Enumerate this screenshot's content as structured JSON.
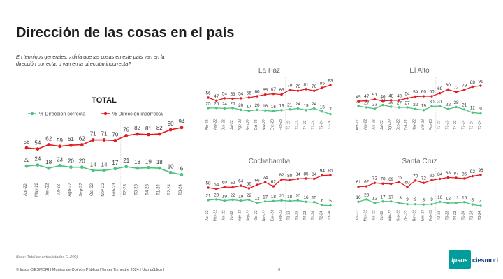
{
  "title": "Dirección de las cosas en el país",
  "question": "En términos generales, ¿diría que las cosas en este país van en la dirección correcta, o van en la dirección incorrecta?",
  "base": "Base: Total de entrevistados (1.200).",
  "footer": "© Ipsos CIESMORI | Monitor de Opinión Pública | Tercer Trimestre 2024 | Uso público |",
  "page_number": "9",
  "logo": {
    "ipsos": "Ipsos",
    "ciesmori": "ciesmori",
    "box_color": "#009d9a",
    "ciesmori_color": "#0b3b73"
  },
  "colors": {
    "correcta": "#4cc37c",
    "incorrecta": "#e5191e",
    "divider": "#d9d9d9"
  },
  "chart_data": [
    {
      "type": "line",
      "title": "TOTAL",
      "legend": [
        "% Dirección correcta",
        "% Dirección incorrecta"
      ],
      "categories": [
        "Abr-22",
        "May-22",
        "Jun-22",
        "Jul-22",
        "Ago-22",
        "Sep-22",
        "Oct-22",
        "Nov-22",
        "Feb-23",
        "T2-23",
        "T3-23",
        "T4-23",
        "T1-24",
        "T2-24",
        "T3-24"
      ],
      "series": [
        {
          "name": "% Dirección correcta",
          "values": [
            22,
            24,
            18,
            23,
            20,
            20,
            14,
            14,
            17,
            21,
            18,
            19,
            18,
            10,
            6
          ]
        },
        {
          "name": "% Dirección incorrecta",
          "values": [
            56,
            54,
            62,
            59,
            61,
            62,
            71,
            71,
            70,
            79,
            82,
            81,
            82,
            90,
            94
          ]
        }
      ]
    },
    {
      "type": "line",
      "title": "La Paz",
      "categories": [
        "Abr-22",
        "May-22",
        "Jun-22",
        "Jul-22",
        "Ago-22",
        "Sep-22",
        "Oct-22",
        "Nov-22",
        "Ene-23",
        "Feb-23",
        "T2-23",
        "T3-23",
        "T4-23",
        "T1-24",
        "T2-24",
        "T3-24"
      ],
      "series": [
        {
          "name": "% Dirección correcta",
          "values": [
            25,
            25,
            24,
            25,
            20,
            17,
            20,
            18,
            16,
            19,
            21,
            24,
            19,
            24,
            15,
            7
          ]
        },
        {
          "name": "% Dirección incorrecta",
          "values": [
            56,
            47,
            54,
            53,
            54,
            56,
            60,
            65,
            67,
            65,
            79,
            76,
            81,
            76,
            85,
            93
          ]
        }
      ]
    },
    {
      "type": "line",
      "title": "El Alto",
      "categories": [
        "Abr-22",
        "May-22",
        "Jun-22",
        "Jul-22",
        "Ago-22",
        "Sep-22",
        "Oct-22",
        "Nov-22",
        "Ene-23",
        "Feb-23",
        "T2-23",
        "T3-23",
        "T4-23",
        "T1-24",
        "T2-24",
        "T3-24"
      ],
      "series": [
        {
          "name": "% Dirección correcta",
          "values": [
            31,
            27,
            23,
            34,
            29,
            27,
            27,
            22,
            19,
            30,
            31,
            22,
            28,
            21,
            12,
            9
          ]
        },
        {
          "name": "% Dirección incorrecta",
          "values": [
            45,
            47,
            51,
            46,
            48,
            48,
            54,
            59,
            60,
            60,
            69,
            80,
            72,
            79,
            88,
            91
          ]
        }
      ]
    },
    {
      "type": "line",
      "title": "Cochabamba",
      "categories": [
        "Abr-22",
        "May-22",
        "Jun-22",
        "Jul-22",
        "Ago-22",
        "Sep-22",
        "Oct-22",
        "Nov-22",
        "Ene-23",
        "Feb-23",
        "T2-23",
        "T3-23",
        "T4-23",
        "T1-24",
        "T2-24",
        "T3-24"
      ],
      "series": [
        {
          "name": "% Dirección correcta",
          "values": [
            21,
            23,
            19,
            22,
            19,
            22,
            12,
            17,
            18,
            20,
            18,
            20,
            16,
            15,
            6,
            5
          ]
        },
        {
          "name": "% Dirección incorrecta",
          "values": [
            58,
            54,
            60,
            59,
            64,
            56,
            66,
            74,
            62,
            82,
            80,
            84,
            85,
            84,
            94,
            95
          ]
        }
      ]
    },
    {
      "type": "line",
      "title": "Santa Cruz",
      "categories": [
        "Abr-22",
        "May-22",
        "Jun-22",
        "Jul-22",
        "Ago-22",
        "Sep-22",
        "Oct-22",
        "Nov-22",
        "Ene-23",
        "Feb-23",
        "T2-23",
        "T3-23",
        "T4-23",
        "T1-24",
        "T2-24",
        "T3-24"
      ],
      "series": [
        {
          "name": "% Dirección correcta",
          "values": [
            16,
            23,
            12,
            17,
            17,
            13,
            9,
            9,
            8,
            9,
            16,
            12,
            13,
            15,
            8,
            4
          ]
        },
        {
          "name": "% Dirección incorrecta",
          "values": [
            61,
            62,
            72,
            70,
            69,
            75,
            60,
            79,
            72,
            80,
            84,
            88,
            87,
            85,
            92,
            96
          ]
        }
      ]
    }
  ]
}
